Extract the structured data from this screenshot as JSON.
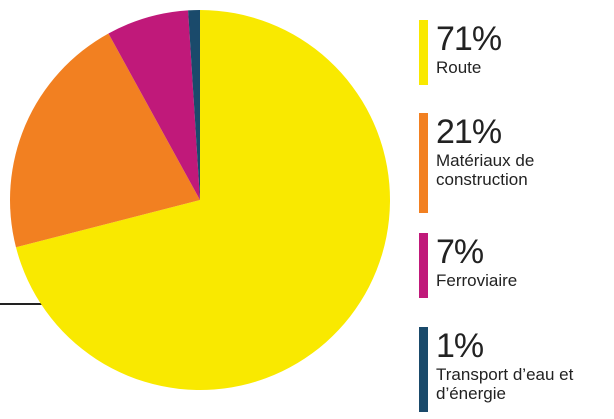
{
  "chart_data": {
    "type": "pie",
    "categories": [
      "Route",
      "Matériaux de construction",
      "Ferroviaire",
      "Transport d’eau et d’énergie"
    ],
    "values": [
      71,
      21,
      7,
      1
    ],
    "value_labels": [
      "71%",
      "21%",
      "7%",
      "1%"
    ],
    "colors": [
      "#f9e900",
      "#f28021",
      "#c0197a",
      "#1a4a6b"
    ]
  }
}
